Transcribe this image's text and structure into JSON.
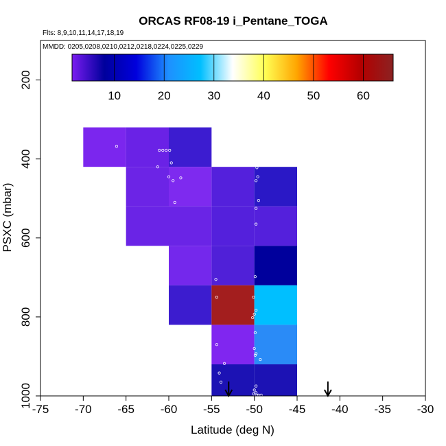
{
  "chart_data": {
    "type": "heatmap",
    "title": "ORCAS RF08-19 i_Pentane_TOGA",
    "flights_label": "Flts: 8,9,10,11,14,17,18,19",
    "mmdd_label": "MMDD: 0205,0208,0210,0212,0218,0224,0225,0229",
    "xlabel": "Latitude (deg N)",
    "ylabel": "PSXC (mbar)",
    "xlim": [
      -75,
      -30
    ],
    "ylim": [
      1000,
      100
    ],
    "x_ticks": [
      -75,
      -70,
      -65,
      -60,
      -55,
      -50,
      -45,
      -40,
      -35,
      -30
    ],
    "x_tick_labels": [
      "-75",
      "-70",
      "-65",
      "-60",
      "-55",
      "-50",
      "-45",
      "-40",
      "-35",
      "-30"
    ],
    "y_ticks": [
      200,
      400,
      600,
      800,
      1000
    ],
    "y_tick_labels": [
      "200",
      "400",
      "600",
      "800",
      "1000"
    ],
    "colorbar": {
      "range": [
        1.5,
        66
      ],
      "ticks": [
        10,
        20,
        30,
        40,
        50,
        60
      ],
      "tick_labels": [
        "10",
        "20",
        "30",
        "40",
        "50",
        "60"
      ],
      "stops": [
        "#7a1cf0",
        "#00009c",
        "#0000dd",
        "#1e90ff",
        "#00bfff",
        "#ffffff",
        "#ffff55",
        "#ffa500",
        "#ff0000",
        "#b30000",
        "#8b2222"
      ]
    },
    "cells": [
      {
        "lat0": -70,
        "lat1": -65,
        "p0": 320,
        "p1": 420,
        "value": 5,
        "color": "#7b26ee"
      },
      {
        "lat0": -65,
        "lat1": -60,
        "p0": 320,
        "p1": 420,
        "value": 6,
        "color": "#6a22e6"
      },
      {
        "lat0": -60,
        "lat1": -55,
        "p0": 320,
        "p1": 420,
        "value": 8,
        "color": "#3c1cd0"
      },
      {
        "lat0": -65,
        "lat1": -60,
        "p0": 420,
        "p1": 520,
        "value": 6,
        "color": "#6c24e6"
      },
      {
        "lat0": -60,
        "lat1": -55,
        "p0": 420,
        "p1": 520,
        "value": 4,
        "color": "#7e2aef"
      },
      {
        "lat0": -55,
        "lat1": -50,
        "p0": 420,
        "p1": 520,
        "value": 7,
        "color": "#5420dc"
      },
      {
        "lat0": -50,
        "lat1": -45,
        "p0": 420,
        "p1": 520,
        "value": 9,
        "color": "#2a18c6"
      },
      {
        "lat0": -65,
        "lat1": -60,
        "p0": 520,
        "p1": 620,
        "value": 6,
        "color": "#6a24e6"
      },
      {
        "lat0": -60,
        "lat1": -55,
        "p0": 520,
        "p1": 620,
        "value": 6,
        "color": "#6a24e6"
      },
      {
        "lat0": -55,
        "lat1": -50,
        "p0": 520,
        "p1": 620,
        "value": 7,
        "color": "#5420dc"
      },
      {
        "lat0": -50,
        "lat1": -45,
        "p0": 520,
        "p1": 620,
        "value": 7,
        "color": "#5420dc"
      },
      {
        "lat0": -60,
        "lat1": -55,
        "p0": 620,
        "p1": 720,
        "value": 5,
        "color": "#7428ec"
      },
      {
        "lat0": -55,
        "lat1": -50,
        "p0": 620,
        "p1": 720,
        "value": 7,
        "color": "#5020d8"
      },
      {
        "lat0": -50,
        "lat1": -45,
        "p0": 620,
        "p1": 720,
        "value": 12,
        "color": "#00009c"
      },
      {
        "lat0": -60,
        "lat1": -55,
        "p0": 720,
        "p1": 820,
        "value": 8,
        "color": "#3c1ccf"
      },
      {
        "lat0": -55,
        "lat1": -50,
        "p0": 720,
        "p1": 820,
        "value": 63,
        "color": "#a31e1e"
      },
      {
        "lat0": -50,
        "lat1": -45,
        "p0": 720,
        "p1": 820,
        "value": 25,
        "color": "#00bfff"
      },
      {
        "lat0": -55,
        "lat1": -50,
        "p0": 820,
        "p1": 920,
        "value": 4,
        "color": "#8026f0"
      },
      {
        "lat0": -50,
        "lat1": -45,
        "p0": 820,
        "p1": 920,
        "value": 20,
        "color": "#2a8bf7"
      },
      {
        "lat0": -55,
        "lat1": -50,
        "p0": 920,
        "p1": 1000,
        "value": 10,
        "color": "#1c12b4"
      },
      {
        "lat0": -50,
        "lat1": -45,
        "p0": 920,
        "p1": 1000,
        "value": 10,
        "color": "#1c12b4"
      }
    ],
    "sample_points": [
      {
        "lat": -66.1,
        "p": 368
      },
      {
        "lat": -61.1,
        "p": 378
      },
      {
        "lat": -60.7,
        "p": 378
      },
      {
        "lat": -60.3,
        "p": 378
      },
      {
        "lat": -59.9,
        "p": 378
      },
      {
        "lat": -59.7,
        "p": 410
      },
      {
        "lat": -61.3,
        "p": 420
      },
      {
        "lat": -60.0,
        "p": 445
      },
      {
        "lat": -59.5,
        "p": 455
      },
      {
        "lat": -58.6,
        "p": 448
      },
      {
        "lat": -59.3,
        "p": 510
      },
      {
        "lat": -49.7,
        "p": 422
      },
      {
        "lat": -49.6,
        "p": 445
      },
      {
        "lat": -49.8,
        "p": 455
      },
      {
        "lat": -49.5,
        "p": 505
      },
      {
        "lat": -49.8,
        "p": 525
      },
      {
        "lat": -49.8,
        "p": 565
      },
      {
        "lat": -54.5,
        "p": 705
      },
      {
        "lat": -49.9,
        "p": 698
      },
      {
        "lat": -54.4,
        "p": 750
      },
      {
        "lat": -50.1,
        "p": 750
      },
      {
        "lat": -49.8,
        "p": 783
      },
      {
        "lat": -50.0,
        "p": 793
      },
      {
        "lat": -50.2,
        "p": 802
      },
      {
        "lat": -49.9,
        "p": 840
      },
      {
        "lat": -54.4,
        "p": 870
      },
      {
        "lat": -50.0,
        "p": 880
      },
      {
        "lat": -49.8,
        "p": 893
      },
      {
        "lat": -49.9,
        "p": 897
      },
      {
        "lat": -49.3,
        "p": 908
      },
      {
        "lat": -53.5,
        "p": 918
      },
      {
        "lat": -54.1,
        "p": 942
      },
      {
        "lat": -53.9,
        "p": 965
      },
      {
        "lat": -49.8,
        "p": 975
      },
      {
        "lat": -50.0,
        "p": 985
      },
      {
        "lat": -50.1,
        "p": 995
      },
      {
        "lat": -49.7,
        "p": 998
      },
      {
        "lat": -49.5,
        "p": 998
      },
      {
        "lat": -49.2,
        "p": 998
      },
      {
        "lat": -49.8,
        "p": 992
      }
    ],
    "arrows": [
      {
        "lat": -53
      },
      {
        "lat": -41.4
      }
    ]
  }
}
